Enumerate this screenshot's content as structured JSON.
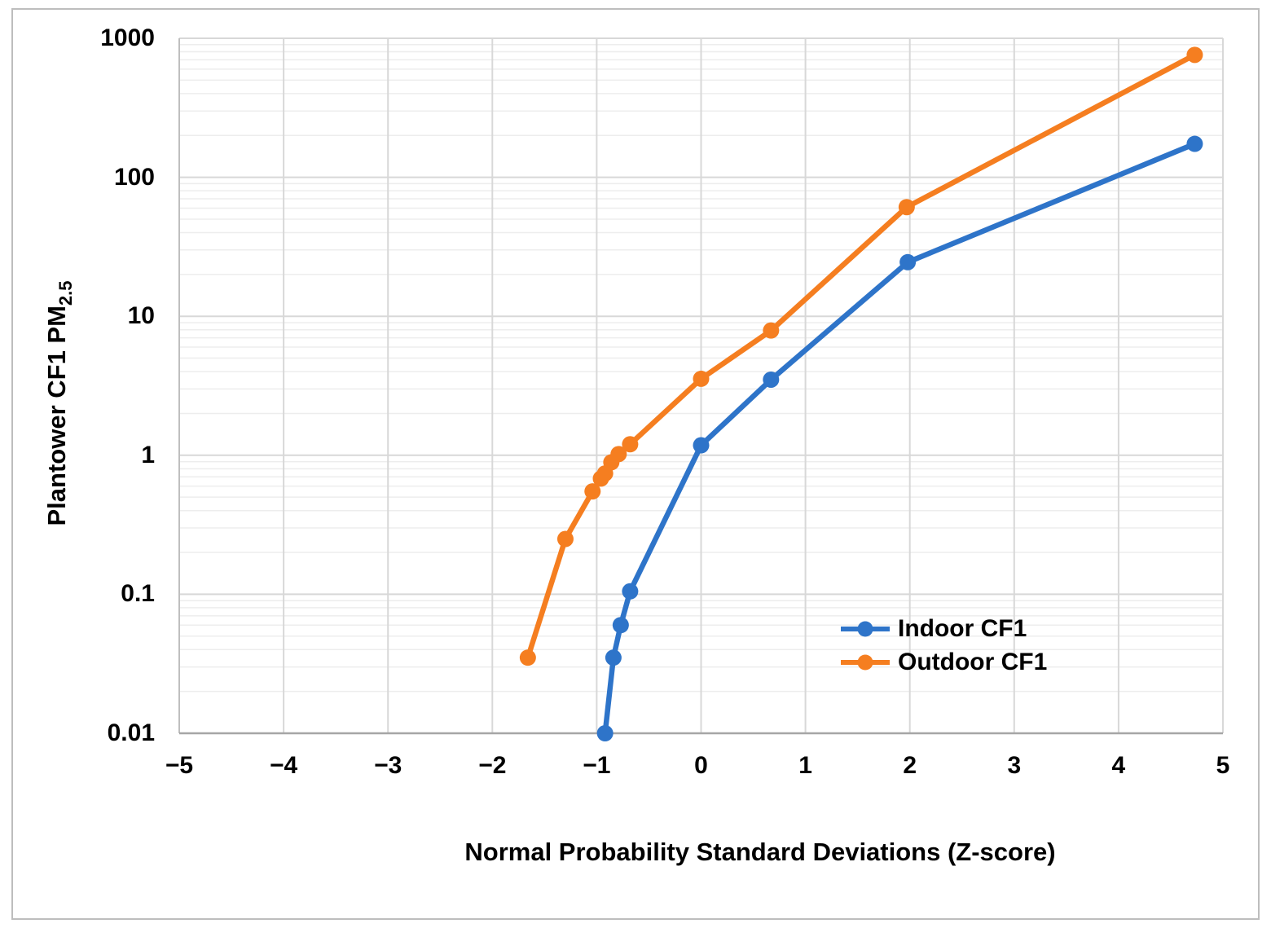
{
  "figure": {
    "background": "#ffffff",
    "border_color": "#bdbdbd"
  },
  "chart_data": {
    "type": "line",
    "title": "",
    "xlabel": "Normal Probability Standard Deviations (Z-score)",
    "ylabel": "Plantower CF1 PM",
    "ylabel_subscript": "2.5",
    "x_axis": {
      "min": -5,
      "max": 5,
      "tick_step": 1,
      "tick_labels": [
        "−5",
        "−4",
        "−3",
        "−2",
        "−1",
        "0",
        "1",
        "2",
        "3",
        "4",
        "5"
      ]
    },
    "y_axis": {
      "scale": "log",
      "min": 0.01,
      "max": 1000,
      "tick_values": [
        0.01,
        0.1,
        1,
        10,
        100,
        1000
      ],
      "tick_labels": [
        "0.01",
        "0.1",
        "1",
        "10",
        "100",
        "1000"
      ]
    },
    "grid": {
      "vertical": true,
      "horizontal_major": true,
      "horizontal_minor_log": true,
      "major_color": "#d8d8d8",
      "minor_color": "#ededed",
      "axis_line_color": "#a6a6a6"
    },
    "legend": {
      "position": "inside-right"
    },
    "series": [
      {
        "name": "Indoor CF1",
        "color": "#2e74c9",
        "marker": "circle",
        "points": [
          [
            -0.92,
            0.01
          ],
          [
            -0.84,
            0.035
          ],
          [
            -0.77,
            0.06
          ],
          [
            -0.68,
            0.105
          ],
          [
            0.0,
            1.18
          ],
          [
            0.67,
            3.5
          ],
          [
            1.98,
            24.5
          ],
          [
            4.73,
            174
          ]
        ]
      },
      {
        "name": "Outdoor CF1",
        "color": "#f57e20",
        "marker": "circle",
        "points": [
          [
            -1.66,
            0.035
          ],
          [
            -1.3,
            0.25
          ],
          [
            -1.04,
            0.55
          ],
          [
            -0.96,
            0.68
          ],
          [
            -0.92,
            0.74
          ],
          [
            -0.86,
            0.89
          ],
          [
            -0.79,
            1.02
          ],
          [
            -0.68,
            1.2
          ],
          [
            0.0,
            3.55
          ],
          [
            0.67,
            7.9
          ],
          [
            1.97,
            61
          ],
          [
            4.73,
            760
          ]
        ]
      }
    ]
  }
}
